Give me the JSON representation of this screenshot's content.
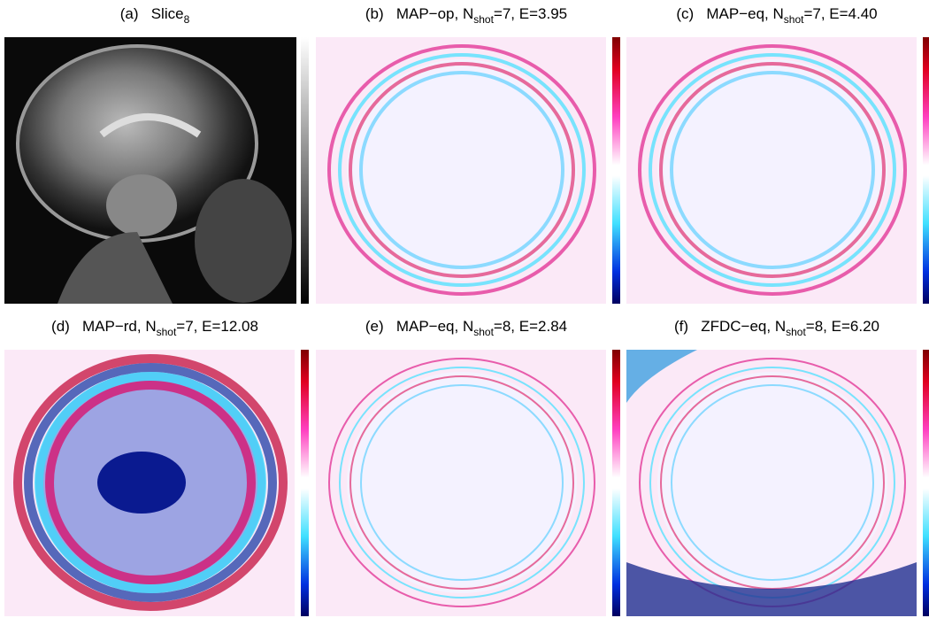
{
  "panels": [
    {
      "label": "(a)",
      "title": "Slice",
      "subscript": "8"
    },
    {
      "label": "(b)",
      "title": "MAP−op, N",
      "subscript": "shot",
      "suffix": "=7, E=3.95"
    },
    {
      "label": "(c)",
      "title": "MAP−eq, N",
      "subscript": "shot",
      "suffix": "=7, E=4.40"
    },
    {
      "label": "(d)",
      "title": "MAP−rd, N",
      "subscript": "shot",
      "suffix": "=7, E=12.08"
    },
    {
      "label": "(e)",
      "title": "MAP−eq, N",
      "subscript": "shot",
      "suffix": "=8, E=2.84"
    },
    {
      "label": "(f)",
      "title": "ZFDC−eq, N",
      "subscript": "shot",
      "suffix": "=8, E=6.20"
    }
  ]
}
